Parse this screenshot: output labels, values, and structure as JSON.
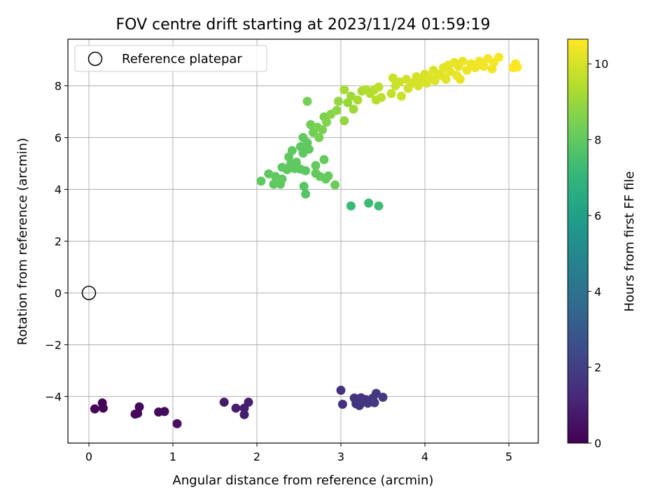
{
  "chart_data": {
    "type": "scatter",
    "title": "FOV centre drift starting at 2023/11/24 01:59:19",
    "xlabel": "Angular distance from reference (arcmin)",
    "ylabel": "Rotation from reference (arcmin)",
    "xlim": [
      -0.25,
      5.35
    ],
    "ylim": [
      -5.8,
      9.8
    ],
    "xticks": [
      0,
      1,
      2,
      3,
      4,
      5
    ],
    "yticks": [
      -4,
      -2,
      0,
      2,
      4,
      6,
      8
    ],
    "grid": true,
    "legend": {
      "position": "top-left",
      "entries": [
        "Reference platepar"
      ]
    },
    "reference_point": {
      "x": 0,
      "y": 0
    },
    "colorbar": {
      "label": "Hours from first FF file",
      "colormap": "viridis",
      "range": [
        0,
        10.65
      ],
      "ticks": [
        0,
        2,
        4,
        6,
        8,
        10
      ]
    },
    "points": [
      [
        0.07,
        -4.48,
        0.05
      ],
      [
        0.16,
        -4.25,
        0.08
      ],
      [
        0.17,
        -4.45,
        0.1
      ],
      [
        0.55,
        -4.68,
        0.2
      ],
      [
        0.58,
        -4.65,
        0.22
      ],
      [
        0.6,
        -4.4,
        0.25
      ],
      [
        0.83,
        -4.6,
        0.3
      ],
      [
        0.9,
        -4.58,
        0.33
      ],
      [
        1.05,
        -5.05,
        0.4
      ],
      [
        1.61,
        -4.22,
        0.8
      ],
      [
        1.75,
        -4.45,
        0.85
      ],
      [
        1.85,
        -4.7,
        0.9
      ],
      [
        1.85,
        -4.45,
        0.9
      ],
      [
        1.9,
        -4.22,
        0.92
      ],
      [
        3.0,
        -3.76,
        1.5
      ],
      [
        3.02,
        -4.3,
        1.55
      ],
      [
        3.16,
        -4.06,
        1.6
      ],
      [
        3.18,
        -4.28,
        1.62
      ],
      [
        3.22,
        -4.35,
        1.65
      ],
      [
        3.24,
        -4.05,
        1.66
      ],
      [
        3.27,
        -4.21,
        1.68
      ],
      [
        3.3,
        -4.12,
        1.7
      ],
      [
        3.32,
        -4.26,
        1.72
      ],
      [
        3.38,
        -4.06,
        1.75
      ],
      [
        3.4,
        -4.24,
        1.78
      ],
      [
        3.42,
        -3.88,
        1.8
      ],
      [
        3.5,
        -4.03,
        1.85
      ],
      [
        3.12,
        3.36,
        7.2
      ],
      [
        3.33,
        3.47,
        7.25
      ],
      [
        3.45,
        3.36,
        7.3
      ],
      [
        2.05,
        4.32,
        8.0
      ],
      [
        2.14,
        4.6,
        8.0
      ],
      [
        2.2,
        4.2,
        8.0
      ],
      [
        2.22,
        4.5,
        8.0
      ],
      [
        2.28,
        4.2,
        8.0
      ],
      [
        2.3,
        4.4,
        8.0
      ],
      [
        2.3,
        4.85,
        8.0
      ],
      [
        2.36,
        4.76,
        8.0
      ],
      [
        2.38,
        5.25,
        8.0
      ],
      [
        2.4,
        4.95,
        8.0
      ],
      [
        2.42,
        5.5,
        8.0
      ],
      [
        2.45,
        4.8,
        8.0
      ],
      [
        2.47,
        5.05,
        8.0
      ],
      [
        2.52,
        4.78,
        8.0
      ],
      [
        2.52,
        5.65,
        8.0
      ],
      [
        2.55,
        5.4,
        8.0
      ],
      [
        2.55,
        6.0,
        8.0
      ],
      [
        2.56,
        4.12,
        7.8
      ],
      [
        2.58,
        3.82,
        7.8
      ],
      [
        2.58,
        4.72,
        8.0
      ],
      [
        2.6,
        5.8,
        8.0
      ],
      [
        2.62,
        5.55,
        8.0
      ],
      [
        2.6,
        7.4,
        8.4
      ],
      [
        2.64,
        6.5,
        8.3
      ],
      [
        2.67,
        6.2,
        8.3
      ],
      [
        2.7,
        4.92,
        8.1
      ],
      [
        2.7,
        4.62,
        8.1
      ],
      [
        2.72,
        6.4,
        8.4
      ],
      [
        2.74,
        6.0,
        8.4
      ],
      [
        2.75,
        4.5,
        8.1
      ],
      [
        2.78,
        6.3,
        8.5
      ],
      [
        2.8,
        6.8,
        8.5
      ],
      [
        2.8,
        5.15,
        8.1
      ],
      [
        2.82,
        4.4,
        8.1
      ],
      [
        2.83,
        6.6,
        8.6
      ],
      [
        2.85,
        4.52,
        8.1
      ],
      [
        2.88,
        6.9,
        8.7
      ],
      [
        2.93,
        4.17,
        8.2
      ],
      [
        2.95,
        7.05,
        8.8
      ],
      [
        2.97,
        7.4,
        8.9
      ],
      [
        3.04,
        6.65,
        8.9
      ],
      [
        3.04,
        7.85,
        9.2
      ],
      [
        3.08,
        7.35,
        9.0
      ],
      [
        3.12,
        7.6,
        9.1
      ],
      [
        3.15,
        7.1,
        9.1
      ],
      [
        3.2,
        7.45,
        9.3
      ],
      [
        3.25,
        7.8,
        9.3
      ],
      [
        3.3,
        7.85,
        9.4
      ],
      [
        3.35,
        7.7,
        9.4
      ],
      [
        3.4,
        7.85,
        9.5
      ],
      [
        3.42,
        7.45,
        9.5
      ],
      [
        3.45,
        7.95,
        9.6
      ],
      [
        3.48,
        7.55,
        9.6
      ],
      [
        3.6,
        7.7,
        9.7
      ],
      [
        3.62,
        8.3,
        9.8
      ],
      [
        3.65,
        8.0,
        9.8
      ],
      [
        3.7,
        8.15,
        9.85
      ],
      [
        3.72,
        7.6,
        9.8
      ],
      [
        3.78,
        8.25,
        9.9
      ],
      [
        3.8,
        7.9,
        9.9
      ],
      [
        3.85,
        8.1,
        9.95
      ],
      [
        3.9,
        8.35,
        10.0
      ],
      [
        3.92,
        8.0,
        10.0
      ],
      [
        3.95,
        8.25,
        10.0
      ],
      [
        4.0,
        8.45,
        10.05
      ],
      [
        4.02,
        8.1,
        10.05
      ],
      [
        4.05,
        8.3,
        10.1
      ],
      [
        4.1,
        8.6,
        10.1
      ],
      [
        4.12,
        8.2,
        10.1
      ],
      [
        4.15,
        8.45,
        10.15
      ],
      [
        4.2,
        8.4,
        10.2
      ],
      [
        4.22,
        8.7,
        10.2
      ],
      [
        4.25,
        8.25,
        10.2
      ],
      [
        4.28,
        8.8,
        10.25
      ],
      [
        4.3,
        8.55,
        10.25
      ],
      [
        4.35,
        8.9,
        10.3
      ],
      [
        4.38,
        8.4,
        10.3
      ],
      [
        4.4,
        8.75,
        10.3
      ],
      [
        4.42,
        8.25,
        10.3
      ],
      [
        4.45,
        8.95,
        10.35
      ],
      [
        4.5,
        8.6,
        10.35
      ],
      [
        4.55,
        8.85,
        10.4
      ],
      [
        4.6,
        8.7,
        10.4
      ],
      [
        4.65,
        8.95,
        10.45
      ],
      [
        4.7,
        8.75,
        10.45
      ],
      [
        4.75,
        9.05,
        10.5
      ],
      [
        4.8,
        8.65,
        10.5
      ],
      [
        4.82,
        8.9,
        10.55
      ],
      [
        4.88,
        9.1,
        10.55
      ],
      [
        5.05,
        8.7,
        10.65
      ],
      [
        5.08,
        8.85,
        10.65
      ],
      [
        5.1,
        8.72,
        10.65
      ]
    ]
  }
}
